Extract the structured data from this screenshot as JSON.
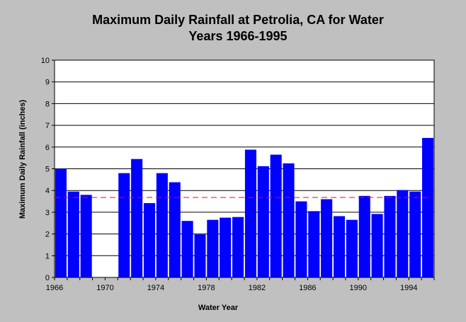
{
  "chart_data": {
    "type": "bar",
    "title_lines": [
      "Maximum Daily Rainfall at Petrolia, CA for Water",
      "Years 1966-1995"
    ],
    "xlabel": "Water Year",
    "ylabel": "Maximum Daily Rainfall (inches)",
    "x": [
      1966,
      1967,
      1968,
      1969,
      1970,
      1971,
      1972,
      1973,
      1974,
      1975,
      1976,
      1977,
      1978,
      1979,
      1980,
      1981,
      1982,
      1983,
      1984,
      1985,
      1986,
      1987,
      1988,
      1989,
      1990,
      1991,
      1992,
      1993,
      1994,
      1995
    ],
    "values": [
      5.0,
      3.95,
      3.8,
      null,
      null,
      4.8,
      5.45,
      3.42,
      4.8,
      4.38,
      2.6,
      1.98,
      2.65,
      2.75,
      2.78,
      5.88,
      5.12,
      5.65,
      5.25,
      3.5,
      3.05,
      3.6,
      2.82,
      2.65,
      3.75,
      2.92,
      3.75,
      4.02,
      3.95,
      6.42
    ],
    "x_tick_labels": [
      "1966",
      "1970",
      "1974",
      "1978",
      "1982",
      "1986",
      "1990",
      "1994"
    ],
    "y_tick_labels": [
      "0",
      "1",
      "2",
      "3",
      "4",
      "5",
      "6",
      "7",
      "8",
      "9",
      "10"
    ],
    "ylim": [
      0,
      10
    ],
    "reference_line": {
      "value": 3.68,
      "color": "#ff0000",
      "style": "dashed"
    },
    "bar_color": "#0000ff",
    "grid": "horizontal",
    "legend": "none"
  }
}
